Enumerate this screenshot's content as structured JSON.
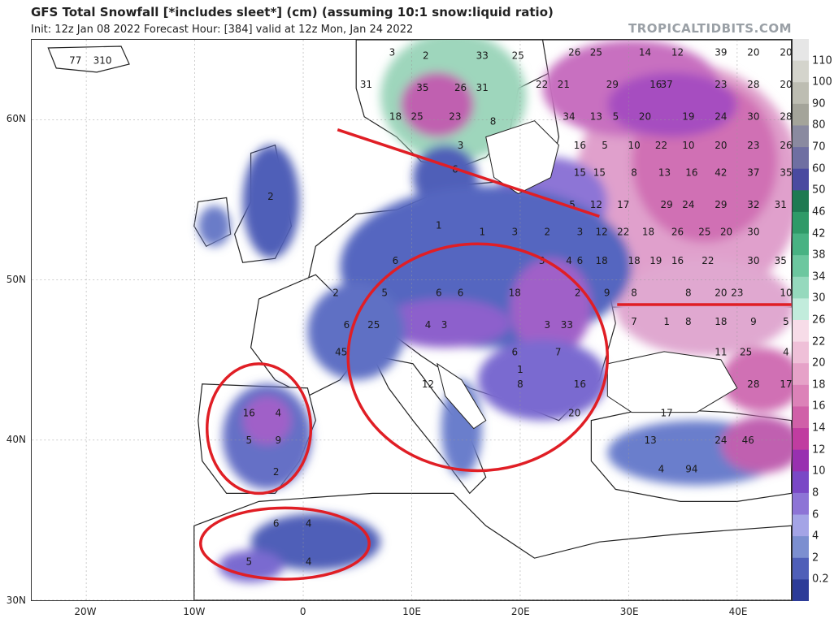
{
  "header": {
    "title": "GFS Total Snowfall [*includes sleet*] (cm) (assuming 10:1 snow:liquid ratio)",
    "subtitle": "Init: 12z Jan 08 2022   Forecast Hour: [384]   valid at 12z Mon, Jan 24 2022",
    "site": "TROPICALTIDBITS.COM"
  },
  "chart_data": {
    "type": "heatmap",
    "title": "GFS Total Snowfall [*includes sleet*] (cm) (assuming 10:1 snow:liquid ratio)",
    "lon_range": [
      -25,
      45
    ],
    "lat_range": [
      30,
      65
    ],
    "y_ticks": [
      {
        "label": "60N",
        "lat": 60
      },
      {
        "label": "50N",
        "lat": 50
      },
      {
        "label": "40N",
        "lat": 40
      },
      {
        "label": "30N",
        "lat": 30
      }
    ],
    "x_ticks": [
      {
        "label": "20W",
        "lon": -20
      },
      {
        "label": "10W",
        "lon": -10
      },
      {
        "label": "0",
        "lon": 0
      },
      {
        "label": "10E",
        "lon": 10
      },
      {
        "label": "20E",
        "lon": 20
      },
      {
        "label": "30E",
        "lon": 30
      },
      {
        "label": "40E",
        "lon": 40
      }
    ],
    "colorbar": {
      "labels": [
        "110",
        "100",
        "90",
        "80",
        "70",
        "60",
        "50",
        "46",
        "42",
        "38",
        "34",
        "30",
        "26",
        "22",
        "20",
        "18",
        "16",
        "14",
        "12",
        "10",
        "8",
        "6",
        "4",
        "2",
        "0.2"
      ],
      "colors": [
        "#e6e6e6",
        "#d4d4cc",
        "#bdbdb2",
        "#a4a49a",
        "#8a8aa0",
        "#6f6fa2",
        "#4a4aa0",
        "#1e7a52",
        "#2f9a68",
        "#48b283",
        "#6cc79f",
        "#95d9bd",
        "#c2ecdc",
        "#f7dce8",
        "#efc0d8",
        "#e6a2c8",
        "#dc82b8",
        "#d060a8",
        "#c03ca0",
        "#9830b0",
        "#7a48c6",
        "#8d74d6",
        "#a4a4e6",
        "#7c8fd0",
        "#4f5fb8",
        "#2d3c98"
      ]
    },
    "values": [
      {
        "lon": -18.5,
        "lat": 63.5,
        "v": 310
      },
      {
        "lon": -21.0,
        "lat": 63.5,
        "v": 77
      },
      {
        "lon": -3.0,
        "lat": 55.0,
        "v": 2
      },
      {
        "lon": 8.2,
        "lat": 64.0,
        "v": 3
      },
      {
        "lon": 11.3,
        "lat": 63.8,
        "v": 2
      },
      {
        "lon": 16.5,
        "lat": 63.8,
        "v": 33
      },
      {
        "lon": 19.8,
        "lat": 63.8,
        "v": 25
      },
      {
        "lon": 5.8,
        "lat": 62.0,
        "v": 31
      },
      {
        "lon": 11.0,
        "lat": 61.8,
        "v": 35
      },
      {
        "lon": 14.5,
        "lat": 61.8,
        "v": 26
      },
      {
        "lon": 16.5,
        "lat": 61.8,
        "v": 31
      },
      {
        "lon": 8.5,
        "lat": 60.0,
        "v": 18
      },
      {
        "lon": 10.5,
        "lat": 60.0,
        "v": 25
      },
      {
        "lon": 14.0,
        "lat": 60.0,
        "v": 23
      },
      {
        "lon": 14.5,
        "lat": 58.2,
        "v": 3
      },
      {
        "lon": 14.0,
        "lat": 56.7,
        "v": 6
      },
      {
        "lon": 17.5,
        "lat": 59.7,
        "v": 8
      },
      {
        "lon": 25.0,
        "lat": 64.0,
        "v": 26
      },
      {
        "lon": 27.0,
        "lat": 64.0,
        "v": 25
      },
      {
        "lon": 31.5,
        "lat": 64.0,
        "v": 14
      },
      {
        "lon": 34.5,
        "lat": 64.0,
        "v": 12
      },
      {
        "lon": 38.5,
        "lat": 64.0,
        "v": 39
      },
      {
        "lon": 41.5,
        "lat": 64.0,
        "v": 20
      },
      {
        "lon": 44.5,
        "lat": 64.0,
        "v": 20
      },
      {
        "lon": 22.0,
        "lat": 62.0,
        "v": 22
      },
      {
        "lon": 24.0,
        "lat": 62.0,
        "v": 21
      },
      {
        "lon": 28.5,
        "lat": 62.0,
        "v": 29
      },
      {
        "lon": 32.5,
        "lat": 62.0,
        "v": 16
      },
      {
        "lon": 33.5,
        "lat": 62.0,
        "v": 37
      },
      {
        "lon": 38.5,
        "lat": 62.0,
        "v": 23
      },
      {
        "lon": 41.5,
        "lat": 62.0,
        "v": 28
      },
      {
        "lon": 44.5,
        "lat": 62.0,
        "v": 20
      },
      {
        "lon": 24.5,
        "lat": 60.0,
        "v": 34
      },
      {
        "lon": 27.0,
        "lat": 60.0,
        "v": 13
      },
      {
        "lon": 28.8,
        "lat": 60.0,
        "v": 5
      },
      {
        "lon": 31.5,
        "lat": 60.0,
        "v": 20
      },
      {
        "lon": 35.5,
        "lat": 60.0,
        "v": 19
      },
      {
        "lon": 38.5,
        "lat": 60.0,
        "v": 24
      },
      {
        "lon": 41.5,
        "lat": 60.0,
        "v": 30
      },
      {
        "lon": 44.5,
        "lat": 60.0,
        "v": 28
      },
      {
        "lon": 25.5,
        "lat": 58.2,
        "v": 16
      },
      {
        "lon": 27.8,
        "lat": 58.2,
        "v": 5
      },
      {
        "lon": 30.5,
        "lat": 58.2,
        "v": 10
      },
      {
        "lon": 33.0,
        "lat": 58.2,
        "v": 22
      },
      {
        "lon": 35.5,
        "lat": 58.2,
        "v": 10
      },
      {
        "lon": 38.5,
        "lat": 58.2,
        "v": 20
      },
      {
        "lon": 41.5,
        "lat": 58.2,
        "v": 23
      },
      {
        "lon": 44.5,
        "lat": 58.2,
        "v": 26
      },
      {
        "lon": 25.5,
        "lat": 56.5,
        "v": 15
      },
      {
        "lon": 27.3,
        "lat": 56.5,
        "v": 15
      },
      {
        "lon": 30.5,
        "lat": 56.5,
        "v": 8
      },
      {
        "lon": 33.3,
        "lat": 56.5,
        "v": 13
      },
      {
        "lon": 35.8,
        "lat": 56.5,
        "v": 16
      },
      {
        "lon": 38.5,
        "lat": 56.5,
        "v": 42
      },
      {
        "lon": 41.5,
        "lat": 56.5,
        "v": 37
      },
      {
        "lon": 44.5,
        "lat": 56.5,
        "v": 35
      },
      {
        "lon": 27.0,
        "lat": 54.5,
        "v": 12
      },
      {
        "lon": 29.5,
        "lat": 54.5,
        "v": 17
      },
      {
        "lon": 33.5,
        "lat": 54.5,
        "v": 29
      },
      {
        "lon": 35.5,
        "lat": 54.5,
        "v": 24
      },
      {
        "lon": 38.5,
        "lat": 54.5,
        "v": 29
      },
      {
        "lon": 41.5,
        "lat": 54.5,
        "v": 32
      },
      {
        "lon": 44.0,
        "lat": 54.5,
        "v": 31
      },
      {
        "lon": 27.5,
        "lat": 52.8,
        "v": 12
      },
      {
        "lon": 29.5,
        "lat": 52.8,
        "v": 22
      },
      {
        "lon": 31.8,
        "lat": 52.8,
        "v": 18
      },
      {
        "lon": 34.5,
        "lat": 52.8,
        "v": 26
      },
      {
        "lon": 37.0,
        "lat": 52.8,
        "v": 25
      },
      {
        "lon": 39.0,
        "lat": 52.8,
        "v": 20
      },
      {
        "lon": 41.5,
        "lat": 52.8,
        "v": 30
      },
      {
        "lon": 27.5,
        "lat": 51.0,
        "v": 18
      },
      {
        "lon": 30.5,
        "lat": 51.0,
        "v": 18
      },
      {
        "lon": 32.5,
        "lat": 51.0,
        "v": 19
      },
      {
        "lon": 34.5,
        "lat": 51.0,
        "v": 16
      },
      {
        "lon": 37.3,
        "lat": 51.0,
        "v": 22
      },
      {
        "lon": 41.5,
        "lat": 51.0,
        "v": 30
      },
      {
        "lon": 44.0,
        "lat": 51.0,
        "v": 35
      },
      {
        "lon": 28.0,
        "lat": 49.0,
        "v": 9
      },
      {
        "lon": 30.5,
        "lat": 49.0,
        "v": 8
      },
      {
        "lon": 35.5,
        "lat": 49.0,
        "v": 8
      },
      {
        "lon": 38.5,
        "lat": 49.0,
        "v": 20
      },
      {
        "lon": 40.0,
        "lat": 49.0,
        "v": 23
      },
      {
        "lon": 44.5,
        "lat": 49.0,
        "v": 10
      },
      {
        "lon": 30.5,
        "lat": 47.2,
        "v": 7
      },
      {
        "lon": 33.5,
        "lat": 47.2,
        "v": 1
      },
      {
        "lon": 35.5,
        "lat": 47.2,
        "v": 8
      },
      {
        "lon": 38.5,
        "lat": 47.2,
        "v": 18
      },
      {
        "lon": 41.5,
        "lat": 47.2,
        "v": 9
      },
      {
        "lon": 44.5,
        "lat": 47.2,
        "v": 5
      },
      {
        "lon": 38.5,
        "lat": 45.3,
        "v": 11
      },
      {
        "lon": 40.8,
        "lat": 45.3,
        "v": 25
      },
      {
        "lon": 44.5,
        "lat": 45.3,
        "v": 4
      },
      {
        "lon": 41.5,
        "lat": 43.3,
        "v": 28
      },
      {
        "lon": 44.5,
        "lat": 43.3,
        "v": 17
      },
      {
        "lon": 12.5,
        "lat": 53.2,
        "v": 1
      },
      {
        "lon": 16.5,
        "lat": 52.8,
        "v": 1
      },
      {
        "lon": 19.5,
        "lat": 52.8,
        "v": 3
      },
      {
        "lon": 22.5,
        "lat": 52.8,
        "v": 2
      },
      {
        "lon": 25.5,
        "lat": 52.8,
        "v": 3
      },
      {
        "lon": 24.8,
        "lat": 54.5,
        "v": 5
      },
      {
        "lon": 22.0,
        "lat": 51.0,
        "v": 3
      },
      {
        "lon": 24.5,
        "lat": 51.0,
        "v": 4
      },
      {
        "lon": 25.5,
        "lat": 51.0,
        "v": 6
      },
      {
        "lon": 8.5,
        "lat": 51.0,
        "v": 6
      },
      {
        "lon": 3.0,
        "lat": 49.0,
        "v": 2
      },
      {
        "lon": 7.5,
        "lat": 49.0,
        "v": 5
      },
      {
        "lon": 12.5,
        "lat": 49.0,
        "v": 6
      },
      {
        "lon": 14.5,
        "lat": 49.0,
        "v": 6
      },
      {
        "lon": 19.5,
        "lat": 49.0,
        "v": 18
      },
      {
        "lon": 25.3,
        "lat": 49.0,
        "v": 2
      },
      {
        "lon": 6.5,
        "lat": 47.0,
        "v": 25
      },
      {
        "lon": 11.5,
        "lat": 47.0,
        "v": 4
      },
      {
        "lon": 13.0,
        "lat": 47.0,
        "v": 3
      },
      {
        "lon": 22.5,
        "lat": 47.0,
        "v": 3
      },
      {
        "lon": 24.3,
        "lat": 47.0,
        "v": 33
      },
      {
        "lon": 4.0,
        "lat": 47.0,
        "v": 6
      },
      {
        "lon": 3.5,
        "lat": 45.3,
        "v": 45
      },
      {
        "lon": 19.5,
        "lat": 45.3,
        "v": 6
      },
      {
        "lon": 23.5,
        "lat": 45.3,
        "v": 7
      },
      {
        "lon": 20.0,
        "lat": 44.2,
        "v": 1
      },
      {
        "lon": 25.5,
        "lat": 43.3,
        "v": 16
      },
      {
        "lon": 11.5,
        "lat": 43.3,
        "v": 12
      },
      {
        "lon": 20.0,
        "lat": 43.3,
        "v": 8
      },
      {
        "lon": 25.0,
        "lat": 41.5,
        "v": 20
      },
      {
        "lon": -5.0,
        "lat": 41.5,
        "v": 16
      },
      {
        "lon": -2.3,
        "lat": 41.5,
        "v": 4
      },
      {
        "lon": -5.0,
        "lat": 39.8,
        "v": 5
      },
      {
        "lon": -2.3,
        "lat": 39.8,
        "v": 9
      },
      {
        "lon": -2.5,
        "lat": 37.8,
        "v": 2
      },
      {
        "lon": 32.0,
        "lat": 39.8,
        "v": 13
      },
      {
        "lon": 38.5,
        "lat": 39.8,
        "v": 24
      },
      {
        "lon": 41.0,
        "lat": 39.8,
        "v": 46
      },
      {
        "lon": 33.5,
        "lat": 41.5,
        "v": 17
      },
      {
        "lon": 33.0,
        "lat": 38.0,
        "v": 4
      },
      {
        "lon": 35.8,
        "lat": 38.0,
        "v": 94
      },
      {
        "lon": -2.5,
        "lat": 34.6,
        "v": 6
      },
      {
        "lon": 0.5,
        "lat": 34.6,
        "v": 4
      },
      {
        "lon": -5.0,
        "lat": 32.2,
        "v": 5
      },
      {
        "lon": 0.5,
        "lat": 32.2,
        "v": 4
      }
    ],
    "annotations": [
      {
        "type": "ellipse",
        "description": "central Europe / Alps / Balkans"
      },
      {
        "type": "ellipse",
        "description": "Iberian Peninsula"
      },
      {
        "type": "ellipse",
        "description": "Atlas Mountains, North Africa"
      },
      {
        "type": "line",
        "description": "boundary line across Scandinavia and Baltics"
      },
      {
        "type": "line",
        "description": "boundary line across Ukraine/Russia near 49N"
      }
    ]
  }
}
